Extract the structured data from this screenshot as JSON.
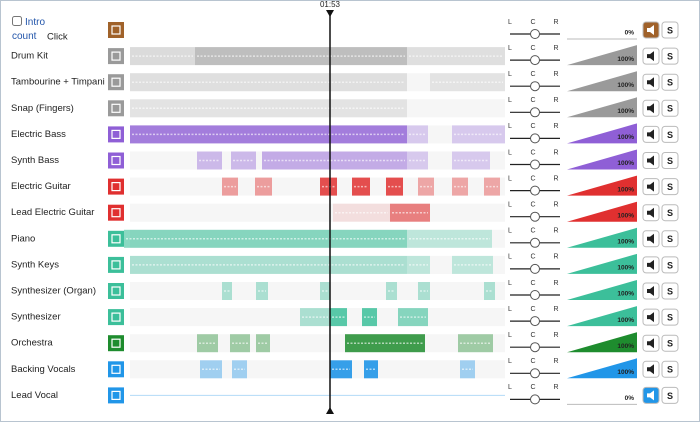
{
  "playhead_time": "01:53",
  "intro_count": "Intro count",
  "pan_labels": [
    "L",
    "C",
    "R"
  ],
  "solo_label": "S",
  "tracks": [
    {
      "name": "Click",
      "color": "#a0622a",
      "volume": "0%",
      "mute_active": true
    },
    {
      "name": "Drum Kit",
      "color": "#9a9a9a",
      "volume": "100%",
      "mute_active": false
    },
    {
      "name": "Tambourine + Timpani",
      "color": "#9a9a9a",
      "volume": "100%",
      "mute_active": false
    },
    {
      "name": "Snap (Fingers)",
      "color": "#9a9a9a",
      "volume": "100%",
      "mute_active": false
    },
    {
      "name": "Electric Bass",
      "color": "#8f5fd6",
      "volume": "100%",
      "mute_active": false
    },
    {
      "name": "Synth Bass",
      "color": "#8f5fd6",
      "volume": "100%",
      "mute_active": false
    },
    {
      "name": "Electric Guitar",
      "color": "#e03030",
      "volume": "100%",
      "mute_active": false
    },
    {
      "name": "Lead Electric Guitar",
      "color": "#e03030",
      "volume": "100%",
      "mute_active": false
    },
    {
      "name": "Piano",
      "color": "#3cbf9a",
      "volume": "100%",
      "mute_active": false
    },
    {
      "name": "Synth Keys",
      "color": "#3cbf9a",
      "volume": "100%",
      "mute_active": false
    },
    {
      "name": "Synthesizer (Organ)",
      "color": "#3cbf9a",
      "volume": "100%",
      "mute_active": false
    },
    {
      "name": "Synthesizer",
      "color": "#3cbf9a",
      "volume": "100%",
      "mute_active": false
    },
    {
      "name": "Orchestra",
      "color": "#1e8c2e",
      "volume": "100%",
      "mute_active": false
    },
    {
      "name": "Backing Vocals",
      "color": "#2196e8",
      "volume": "100%",
      "mute_active": false
    },
    {
      "name": "Lead Vocal",
      "color": "#2196e8",
      "volume": "0%",
      "mute_active": true
    }
  ]
}
